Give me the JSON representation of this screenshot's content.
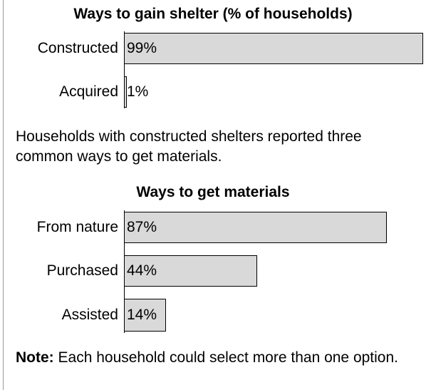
{
  "chart_data": [
    {
      "type": "bar",
      "orientation": "horizontal",
      "title": "Ways to gain shelter (% of households)",
      "categories": [
        "Constructed",
        "Acquired"
      ],
      "values": [
        99,
        1
      ],
      "value_labels": [
        "99%",
        "1%"
      ],
      "xlim": [
        0,
        100
      ],
      "grid": false,
      "bar_color": "#d9d9d9"
    },
    {
      "type": "bar",
      "orientation": "horizontal",
      "title": "Ways to get materials",
      "categories": [
        "From nature",
        "Purchased",
        "Assisted"
      ],
      "values": [
        87,
        44,
        14
      ],
      "value_labels": [
        "87%",
        "44%",
        "14%"
      ],
      "xlim": [
        0,
        100
      ],
      "grid": false,
      "bar_color": "#d9d9d9"
    }
  ],
  "text": {
    "paragraph": "Households with constructed shelters reported three common ways to get materials.",
    "note_label": "Note:",
    "note_body": " Each household could select more than one option."
  }
}
